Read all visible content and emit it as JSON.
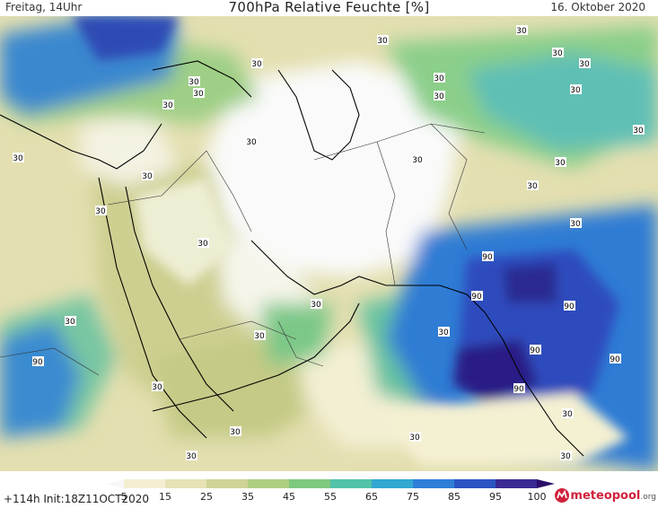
{
  "header": {
    "day_time": "Freitag, 14Uhr",
    "title": "700hPa Relative Feuchte [%]",
    "date": "16. Oktober 2020"
  },
  "footer": {
    "run_info": "+114h  Init:18Z11OCT2020",
    "brand_name": "meteopool",
    "brand_suffix": ".org"
  },
  "colorbar": {
    "labels": [
      "5",
      "15",
      "25",
      "35",
      "45",
      "55",
      "65",
      "75",
      "85",
      "95",
      "100"
    ],
    "colors": [
      "#f7f7f7",
      "#f4efd2",
      "#e6e2b6",
      "#cfd496",
      "#aece80",
      "#7ec97f",
      "#52c3a8",
      "#32a8d2",
      "#2f7fd8",
      "#2b55c3",
      "#3a2a93",
      "#2a0d6a"
    ]
  },
  "contour_labels": [
    "30",
    "90"
  ],
  "humidity_palette": {
    "very_dry": "#fbfbfb",
    "dry": "#f1eccd",
    "mid_dry": "#d8d9a0",
    "moderate": "#b7c97d",
    "moist": "#74c488",
    "humid": "#3fa8c9",
    "very_humid": "#2a6fce",
    "saturated": "#2d45b2",
    "max": "#2b1f86"
  }
}
